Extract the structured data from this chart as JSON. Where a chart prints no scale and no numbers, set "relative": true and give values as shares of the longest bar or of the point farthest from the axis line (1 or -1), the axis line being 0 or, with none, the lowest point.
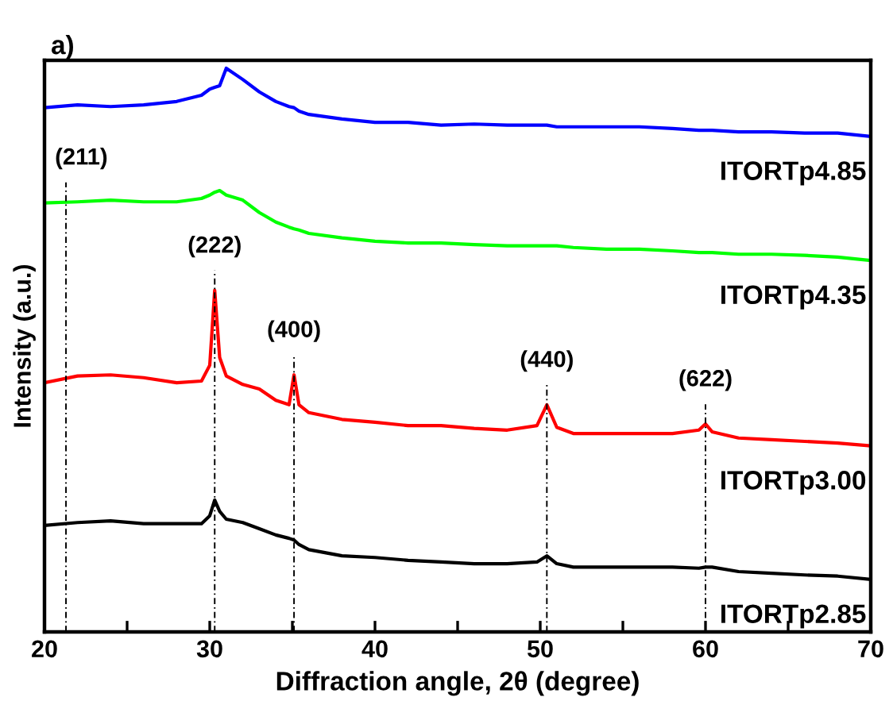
{
  "chart_data": {
    "type": "line",
    "title": "a)",
    "xlabel": "Diffraction angle, 2θ (degree)",
    "ylabel": "Intensity (a.u.)",
    "relative": true,
    "x": [
      20,
      22,
      24,
      26,
      28,
      29.5,
      30,
      30.3,
      30.6,
      31,
      32,
      33,
      34,
      34.8,
      35.1,
      35.4,
      36,
      38,
      40,
      42,
      44,
      46,
      48,
      49.8,
      50.4,
      51,
      52,
      54,
      56,
      58,
      59.6,
      60,
      60.4,
      62,
      64,
      66,
      68,
      70
    ],
    "xlim": [
      20,
      70
    ],
    "xticks": [
      20,
      {
        "value": 25,
        "label": null
      },
      30,
      {
        "value": 35,
        "label": null
      },
      40,
      {
        "value": 45,
        "label": null
      },
      50,
      {
        "value": 55,
        "label": null
      },
      60,
      {
        "value": 65,
        "label": null
      },
      70
    ],
    "series": [
      {
        "name": "ITORTp4.85",
        "color": "#0000ff",
        "values": [
          0.93,
          0.935,
          0.932,
          0.935,
          0.941,
          0.952,
          0.963,
          0.966,
          0.969,
          1.0,
          0.98,
          0.958,
          0.941,
          0.932,
          0.93,
          0.924,
          0.918,
          0.91,
          0.904,
          0.904,
          0.899,
          0.901,
          0.899,
          0.899,
          0.899,
          0.896,
          0.896,
          0.896,
          0.896,
          0.893,
          0.89,
          0.89,
          0.89,
          0.887,
          0.887,
          0.885,
          0.885,
          0.879
        ]
      },
      {
        "name": "ITORTp4.35",
        "color": "#00ff00",
        "values": [
          0.761,
          0.763,
          0.766,
          0.763,
          0.763,
          0.769,
          0.775,
          0.78,
          0.783,
          0.775,
          0.766,
          0.744,
          0.727,
          0.718,
          0.715,
          0.713,
          0.707,
          0.699,
          0.693,
          0.69,
          0.69,
          0.687,
          0.685,
          0.685,
          0.685,
          0.685,
          0.682,
          0.679,
          0.679,
          0.676,
          0.673,
          0.673,
          0.673,
          0.67,
          0.67,
          0.668,
          0.665,
          0.659
        ]
      },
      {
        "name": "ITORTp3.00",
        "color": "#ff0000",
        "values": [
          0.442,
          0.454,
          0.456,
          0.451,
          0.442,
          0.445,
          0.473,
          0.606,
          0.487,
          0.454,
          0.439,
          0.431,
          0.411,
          0.403,
          0.456,
          0.403,
          0.389,
          0.377,
          0.372,
          0.366,
          0.366,
          0.361,
          0.358,
          0.366,
          0.403,
          0.363,
          0.352,
          0.352,
          0.352,
          0.352,
          0.358,
          0.369,
          0.355,
          0.344,
          0.341,
          0.338,
          0.335,
          0.33
        ]
      },
      {
        "name": "ITORTp2.85",
        "color": "#000000",
        "values": [
          0.189,
          0.194,
          0.197,
          0.192,
          0.192,
          0.192,
          0.206,
          0.234,
          0.214,
          0.2,
          0.194,
          0.183,
          0.172,
          0.166,
          0.163,
          0.155,
          0.146,
          0.135,
          0.132,
          0.127,
          0.124,
          0.121,
          0.121,
          0.124,
          0.135,
          0.121,
          0.115,
          0.115,
          0.115,
          0.115,
          0.113,
          0.115,
          0.115,
          0.107,
          0.104,
          0.101,
          0.099,
          0.093
        ]
      }
    ],
    "ref_lines": [
      {
        "axis": "x",
        "value": 21.3,
        "color": "#000000",
        "line_style": "dashdot"
      },
      {
        "axis": "x",
        "value": 30.3,
        "color": "#000000",
        "line_style": "dashdot"
      },
      {
        "axis": "x",
        "value": 35.1,
        "color": "#000000",
        "line_style": "dashdot"
      },
      {
        "axis": "x",
        "value": 50.4,
        "color": "#000000",
        "line_style": "dashdot"
      },
      {
        "axis": "x",
        "value": 60.0,
        "color": "#000000",
        "line_style": "dashdot"
      }
    ],
    "annotations": [
      "(211)",
      "(222)",
      "(400)",
      "(440)",
      "(622)"
    ],
    "legend": false,
    "grid": false
  }
}
